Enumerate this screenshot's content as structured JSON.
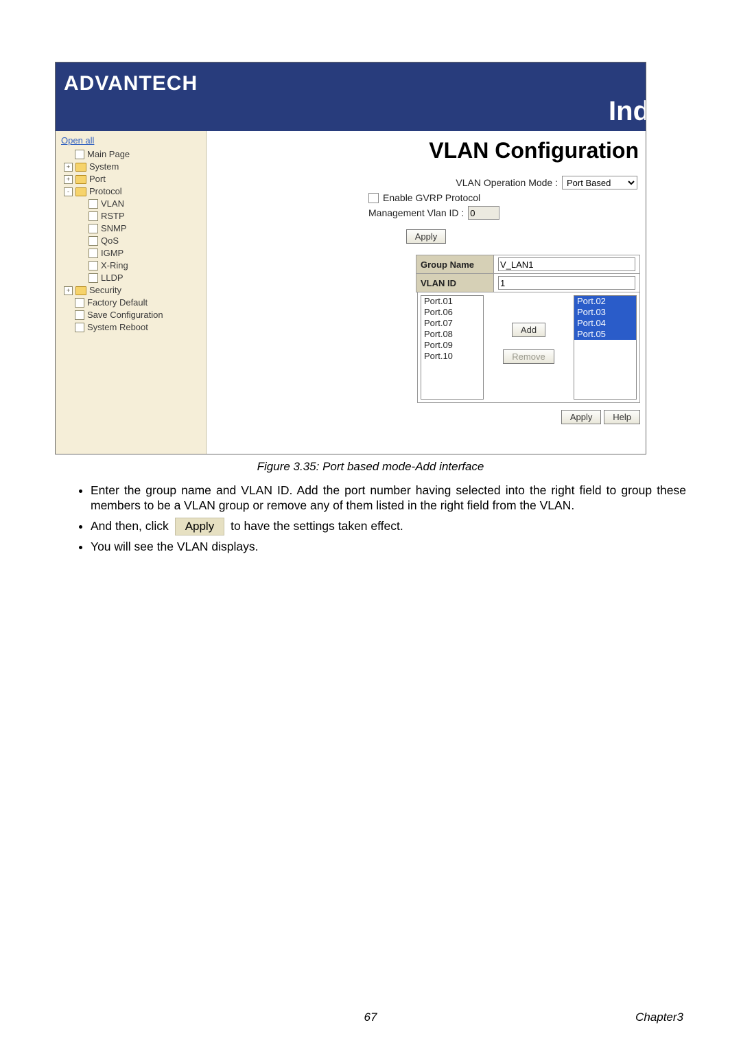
{
  "banner": {
    "brand": "ADVANTECH",
    "industrial_partial": "Ind"
  },
  "sidebar": {
    "open_all": "Open all",
    "items": [
      {
        "label": "Main Page",
        "level": 1,
        "icon": "doc",
        "expander": ""
      },
      {
        "label": "System",
        "level": 0,
        "icon": "folder",
        "expander": "+"
      },
      {
        "label": "Port",
        "level": 0,
        "icon": "folder",
        "expander": "+"
      },
      {
        "label": "Protocol",
        "level": 0,
        "icon": "folder",
        "expander": "-"
      },
      {
        "label": "VLAN",
        "level": 2,
        "icon": "doc",
        "expander": ""
      },
      {
        "label": "RSTP",
        "level": 2,
        "icon": "doc",
        "expander": ""
      },
      {
        "label": "SNMP",
        "level": 2,
        "icon": "doc",
        "expander": ""
      },
      {
        "label": "QoS",
        "level": 2,
        "icon": "doc",
        "expander": ""
      },
      {
        "label": "IGMP",
        "level": 2,
        "icon": "doc",
        "expander": ""
      },
      {
        "label": "X-Ring",
        "level": 2,
        "icon": "doc",
        "expander": ""
      },
      {
        "label": "LLDP",
        "level": 2,
        "icon": "doc",
        "expander": ""
      },
      {
        "label": "Security",
        "level": 0,
        "icon": "folder",
        "expander": "+"
      },
      {
        "label": "Factory Default",
        "level": 1,
        "icon": "doc",
        "expander": ""
      },
      {
        "label": "Save Configuration",
        "level": 1,
        "icon": "doc",
        "expander": ""
      },
      {
        "label": "System Reboot",
        "level": 1,
        "icon": "doc",
        "expander": ""
      }
    ]
  },
  "content": {
    "title": "VLAN Configuration",
    "mode_label": "VLAN Operation Mode :",
    "mode_value": "Port Based",
    "gvrp_label": "Enable GVRP Protocol",
    "mgmt_label": "Management Vlan ID :",
    "mgmt_value": "0",
    "apply_label": "Apply",
    "table": {
      "row1_label": "Group Name",
      "row1_value": "V_LAN1",
      "row2_label": "VLAN ID",
      "row2_value": "1"
    },
    "left_ports": [
      "Port.01",
      "Port.06",
      "Port.07",
      "Port.08",
      "Port.09",
      "Port.10"
    ],
    "right_ports": [
      "Port.02",
      "Port.03",
      "Port.04",
      "Port.05"
    ],
    "add_label": "Add",
    "remove_label": "Remove",
    "help_label": "Help"
  },
  "caption": "Figure 3.35: Port based mode-Add interface",
  "instructions": {
    "b1": "Enter the group name and VLAN ID. Add the port number having selected into the right field to group these members to be a VLAN group or remove any of them listed in the right field from the VLAN.",
    "b2a": "And then, click",
    "b2_btn": "Apply",
    "b2b": "to have the settings taken effect.",
    "b3": "You will see the VLAN displays."
  },
  "footer": {
    "page_number": "67",
    "chapter": "Chapter3"
  },
  "colors": {
    "banner_bg": "#283c7c",
    "sidebar_bg": "#f5eed8",
    "table_header_bg": "#d6d0b6",
    "selected_bg": "#2a5cc9"
  }
}
